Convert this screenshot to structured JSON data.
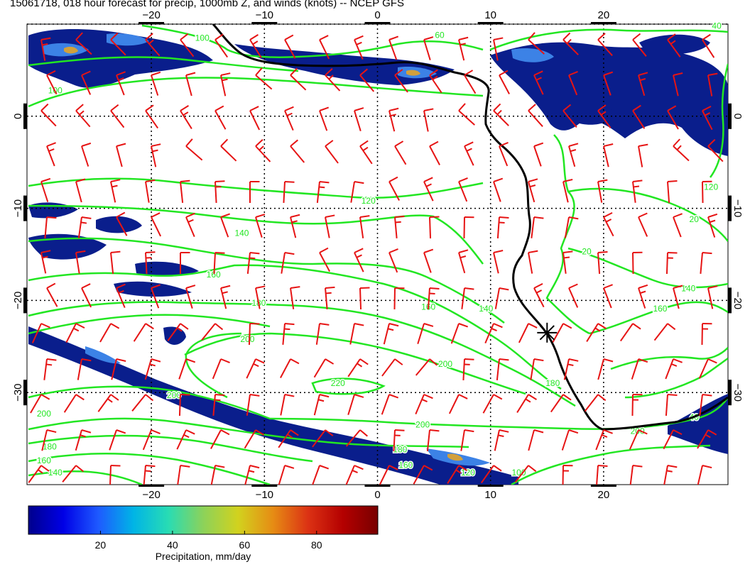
{
  "title": "15061718, 018 hour forecast for precip, 1000mb Z, and winds (knots) -- NCEP GFS",
  "axes": {
    "x_ticks": [
      -20,
      -10,
      0,
      10,
      20
    ],
    "y_ticks": [
      0,
      -10,
      -20,
      -30
    ],
    "lon_range": [
      -31,
      31
    ],
    "lat_range": [
      -40,
      10
    ]
  },
  "contour_labels": [
    {
      "text": "100",
      "lon": -28.5,
      "lat": 2.5
    },
    {
      "text": "100",
      "lon": -15.5,
      "lat": 8.2
    },
    {
      "text": "60",
      "lon": 5.5,
      "lat": 8.5
    },
    {
      "text": "40",
      "lon": 30.0,
      "lat": 9.5
    },
    {
      "text": "120",
      "lon": -0.8,
      "lat": -9.5
    },
    {
      "text": "140",
      "lon": -12.0,
      "lat": -13.0
    },
    {
      "text": "160",
      "lon": -14.5,
      "lat": -17.5
    },
    {
      "text": "180",
      "lon": -10.5,
      "lat": -20.6
    },
    {
      "text": "200",
      "lon": -11.5,
      "lat": -24.5
    },
    {
      "text": "160",
      "lon": 4.5,
      "lat": -21.0
    },
    {
      "text": "140",
      "lon": 9.6,
      "lat": -21.2
    },
    {
      "text": "200",
      "lon": 6.0,
      "lat": -27.2
    },
    {
      "text": "220",
      "lon": -3.5,
      "lat": -29.3
    },
    {
      "text": "180",
      "lon": 15.5,
      "lat": -29.3
    },
    {
      "text": "200",
      "lon": -18.0,
      "lat": -30.6
    },
    {
      "text": "200",
      "lon": -29.5,
      "lat": -32.6
    },
    {
      "text": "200",
      "lon": 4.0,
      "lat": -33.8
    },
    {
      "text": "180",
      "lon": 2.0,
      "lat": -36.5
    },
    {
      "text": "160",
      "lon": 2.5,
      "lat": -38.2
    },
    {
      "text": "180",
      "lon": -29.0,
      "lat": -36.2
    },
    {
      "text": "160",
      "lon": -29.5,
      "lat": -37.7
    },
    {
      "text": "140",
      "lon": -28.5,
      "lat": -39.0
    },
    {
      "text": "120",
      "lon": 8.0,
      "lat": -39.0
    },
    {
      "text": "100",
      "lon": 12.5,
      "lat": -39.0
    },
    {
      "text": "20",
      "lon": 18.5,
      "lat": -15.0
    },
    {
      "text": "120",
      "lon": 29.5,
      "lat": -8.0
    },
    {
      "text": "20",
      "lon": 28.0,
      "lat": -11.5
    },
    {
      "text": "140",
      "lon": 27.5,
      "lat": -19.0
    },
    {
      "text": "160",
      "lon": 25.0,
      "lat": -21.2
    },
    {
      "text": "200",
      "lon": 23.0,
      "lat": -34.5
    },
    {
      "text": "40",
      "lon": 28.0,
      "lat": -33.0
    }
  ],
  "colorbar": {
    "label": "Precipitation, mm/day",
    "ticks": [
      20,
      40,
      60,
      80
    ],
    "range": [
      0,
      97
    ],
    "colors": [
      "#00008c",
      "#0000e6",
      "#1e5aff",
      "#00b4e6",
      "#28dcb4",
      "#8cd25a",
      "#d2d21e",
      "#e68c14",
      "#dc3214",
      "#b40000",
      "#780000"
    ]
  },
  "colors": {
    "precip_low": "#0a1e8c",
    "precip_mid": "#3c82e6",
    "precip_high": "#d2a03c",
    "contour": "#22e622",
    "coast": "#000000",
    "barb": "#e61414",
    "grid": "#000000"
  },
  "marker": {
    "lon": 15.0,
    "lat": -23.5,
    "symbol": "asterisk"
  }
}
